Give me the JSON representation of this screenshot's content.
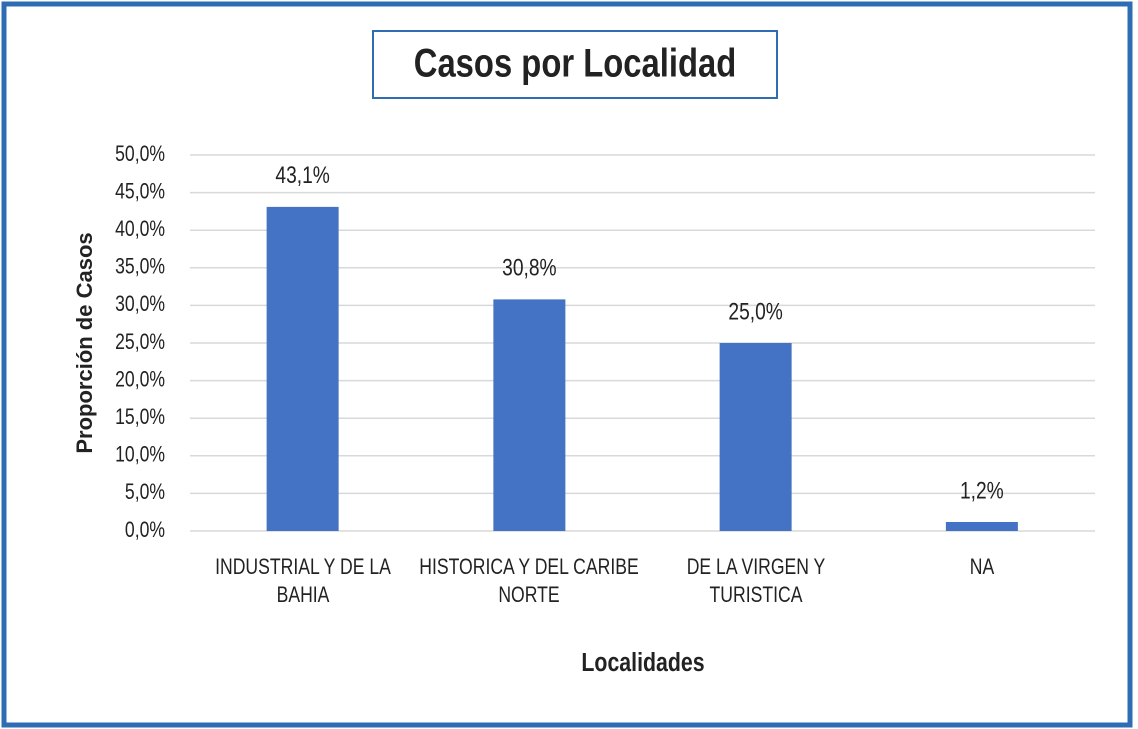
{
  "chart_data": {
    "type": "bar",
    "title": "Casos por Localidad",
    "x_label": "Localidades",
    "y_label": "Proporción de Casos",
    "categories": [
      "INDUSTRIAL Y DE LA BAHIA",
      "HISTORICA Y DEL CARIBE NORTE",
      "DE LA VIRGEN Y TURISTICA",
      "NA"
    ],
    "values": [
      43.1,
      30.8,
      25.0,
      1.2
    ],
    "value_labels": [
      "43,1%",
      "30,8%",
      "25,0%",
      "1,2%"
    ],
    "color": "#4472c4",
    "ylim": [
      0,
      50
    ],
    "yticks": [
      {
        "value": 0,
        "label": "0,0%"
      },
      {
        "value": 5,
        "label": "5,0%"
      },
      {
        "value": 10,
        "label": "10,0%"
      },
      {
        "value": 15,
        "label": "15,0%"
      },
      {
        "value": 20,
        "label": "20,0%"
      },
      {
        "value": 25,
        "label": "25,0%"
      },
      {
        "value": 30,
        "label": "30,0%"
      },
      {
        "value": 35,
        "label": "35,0%"
      },
      {
        "value": 40,
        "label": "40,0%"
      },
      {
        "value": 45,
        "label": "45,0%"
      },
      {
        "value": 50,
        "label": "50,0%"
      }
    ],
    "grid": true
  }
}
